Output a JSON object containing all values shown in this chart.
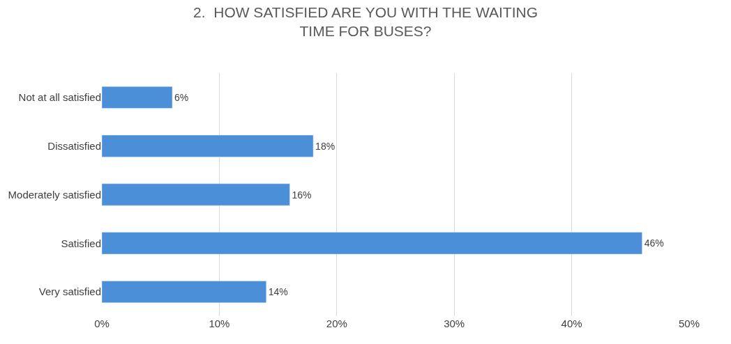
{
  "chart_data": {
    "type": "bar",
    "orientation": "horizontal",
    "title": "2.  HOW SATISFIED ARE YOU WITH THE WAITING TIME FOR BUSES?",
    "categories": [
      "Not at all satisfied",
      "Dissatisfied",
      "Moderately satisfied",
      "Satisfied",
      "Very satisfied"
    ],
    "values": [
      6,
      18,
      16,
      46,
      14
    ],
    "value_labels": [
      "6%",
      "18%",
      "16%",
      "46%",
      "14%"
    ],
    "color": "#4a8fd8",
    "xlim": [
      0,
      50
    ],
    "xticks": [
      {
        "value": 0,
        "label": "0%"
      },
      {
        "value": 10,
        "label": "10%"
      },
      {
        "value": 20,
        "label": "20%"
      },
      {
        "value": 30,
        "label": "30%"
      },
      {
        "value": 40,
        "label": "40%"
      },
      {
        "value": 50,
        "label": "50%"
      }
    ],
    "grid": "x",
    "legend": false
  }
}
